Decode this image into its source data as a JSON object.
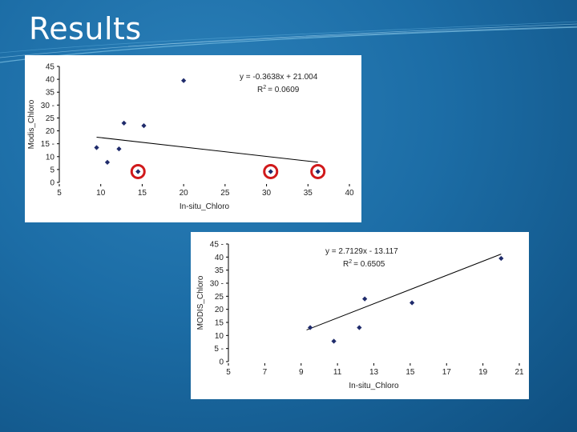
{
  "slide": {
    "title": "Results"
  },
  "chart_data": [
    {
      "type": "scatter",
      "xlabel": "In-situ_Chloro",
      "ylabel": "Modis_Chloro",
      "xlim": [
        5,
        40
      ],
      "ylim": [
        0,
        45
      ],
      "xticks": [
        "5",
        "10",
        "15",
        "20",
        "25",
        "30",
        "35",
        "40"
      ],
      "yticks": [
        "0",
        "5",
        "10",
        "15 -",
        "20",
        "25",
        "30 -",
        "35",
        "40",
        "45"
      ],
      "points": [
        {
          "x": 9.5,
          "y": 13.5
        },
        {
          "x": 10.8,
          "y": 7.8
        },
        {
          "x": 12.2,
          "y": 13.0
        },
        {
          "x": 12.8,
          "y": 23.0
        },
        {
          "x": 14.5,
          "y": 4.2,
          "circled": true
        },
        {
          "x": 15.2,
          "y": 22.0
        },
        {
          "x": 20.0,
          "y": 39.5
        },
        {
          "x": 30.5,
          "y": 4.2,
          "circled": true
        },
        {
          "x": 36.2,
          "y": 4.2,
          "circled": true
        }
      ],
      "trendline": {
        "slope": -0.3638,
        "intercept": 21.004,
        "x_from": 9.5,
        "x_to": 36.2
      },
      "equation": "y = -0.3638x + 21.004",
      "r2_label": "R",
      "r2_value": "= 0.0609",
      "grid": false,
      "marker_color": "#1f2b6b",
      "highlight_color": "#d0191b"
    },
    {
      "type": "scatter",
      "xlabel": "In-situ_Chloro",
      "ylabel": "MODIS_Chloro",
      "xlim": [
        5,
        21
      ],
      "ylim": [
        0,
        45
      ],
      "xticks": [
        "5",
        "7",
        "9",
        "11",
        "13",
        "15",
        "17",
        "19",
        "21"
      ],
      "yticks": [
        "0",
        "5 -",
        "10",
        "15",
        "20",
        "25",
        "30 -",
        "35",
        "40",
        "45 -"
      ],
      "points": [
        {
          "x": 9.5,
          "y": 13.0
        },
        {
          "x": 10.8,
          "y": 7.8
        },
        {
          "x": 12.2,
          "y": 13.0
        },
        {
          "x": 12.5,
          "y": 24.0
        },
        {
          "x": 15.1,
          "y": 22.5
        },
        {
          "x": 20.0,
          "y": 39.5
        }
      ],
      "trendline": {
        "slope": 2.7129,
        "intercept": -13.117,
        "x_from": 9.3,
        "x_to": 20.0
      },
      "equation": "y = 2.7129x - 13.117",
      "r2_label": "R",
      "r2_value": "= 0.6505",
      "grid": false,
      "marker_color": "#1f2b6b"
    }
  ]
}
